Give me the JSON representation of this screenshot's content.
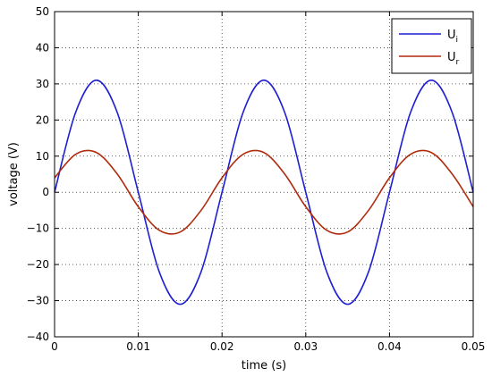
{
  "chart_data": {
    "type": "line",
    "xlabel": "time (s)",
    "ylabel": "voltage (V)",
    "xlim": [
      0,
      0.05
    ],
    "ylim": [
      -40,
      50
    ],
    "x_ticks": [
      0,
      0.01,
      0.02,
      0.03,
      0.04,
      0.05
    ],
    "x_tick_labels": [
      "0",
      "0.01",
      "0.02",
      "0.03",
      "0.04",
      "0.05"
    ],
    "y_ticks": [
      -40,
      -30,
      -20,
      -10,
      0,
      10,
      20,
      30,
      40,
      50
    ],
    "y_tick_labels": [
      "−40",
      "−30",
      "−20",
      "−10",
      "0",
      "10",
      "20",
      "30",
      "40",
      "50"
    ],
    "grid": true,
    "legend_position": "top-right",
    "series": [
      {
        "name": "U",
        "subscript": "i",
        "color": "#1f1fd1",
        "x": [
          0,
          0.0025,
          0.005,
          0.0075,
          0.01,
          0.0125,
          0.015,
          0.0175,
          0.02,
          0.0225,
          0.025,
          0.0275,
          0.03,
          0.0325,
          0.035,
          0.0375,
          0.04,
          0.0425,
          0.045,
          0.0475,
          0.05
        ],
        "values": [
          0,
          22,
          31,
          22,
          0,
          -22,
          -31,
          -22,
          0,
          22,
          31,
          22,
          0,
          -22,
          -31,
          -22,
          0,
          22,
          31,
          22,
          0
        ]
      },
      {
        "name": "U",
        "subscript": "r",
        "color": "#b02a0c",
        "x": [
          0,
          0.0025,
          0.005,
          0.0075,
          0.01,
          0.0125,
          0.015,
          0.0175,
          0.02,
          0.0225,
          0.025,
          0.0275,
          0.03,
          0.0325,
          0.035,
          0.0375,
          0.04,
          0.0425,
          0.045,
          0.0475,
          0.05
        ],
        "values": [
          4,
          10.5,
          11,
          5,
          -4,
          -10.5,
          -11,
          -5,
          4,
          10.5,
          11,
          5,
          -4,
          -10.5,
          -11,
          -5,
          4,
          10.5,
          11,
          5,
          -4
        ]
      }
    ]
  }
}
